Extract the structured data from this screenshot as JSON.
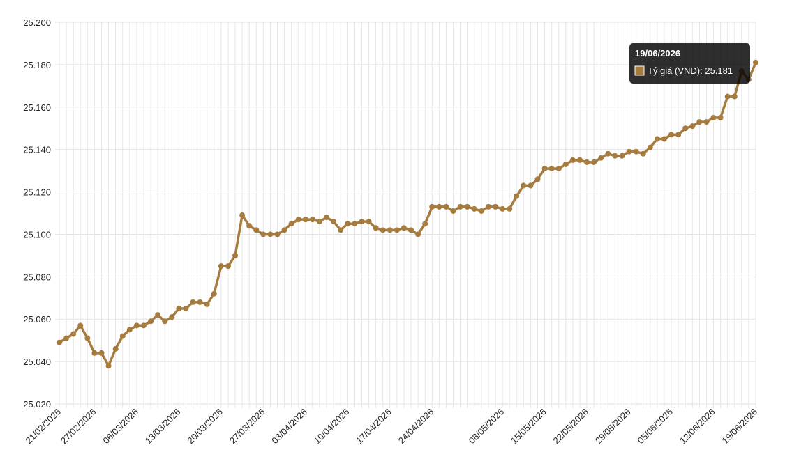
{
  "chart_data": {
    "type": "line",
    "categories": [
      "21/02/2026",
      null,
      null,
      null,
      null,
      "27/02/2026",
      null,
      null,
      null,
      null,
      null,
      "06/03/2026",
      null,
      null,
      null,
      null,
      null,
      "13/03/2026",
      null,
      null,
      null,
      null,
      null,
      "20/03/2026",
      null,
      null,
      null,
      null,
      null,
      "27/03/2026",
      null,
      null,
      null,
      null,
      null,
      "03/04/2026",
      null,
      null,
      null,
      null,
      null,
      "10/04/2026",
      null,
      null,
      null,
      null,
      null,
      "17/04/2026",
      null,
      null,
      null,
      null,
      null,
      "24/04/2026",
      null,
      null,
      null,
      null,
      null,
      null,
      null,
      null,
      null,
      "08/05/2026",
      null,
      null,
      null,
      null,
      null,
      "15/05/2026",
      null,
      null,
      null,
      null,
      null,
      "22/05/2026",
      null,
      null,
      null,
      null,
      null,
      "29/05/2026",
      null,
      null,
      null,
      null,
      null,
      "05/06/2026",
      null,
      null,
      null,
      null,
      null,
      "12/06/2026",
      null,
      null,
      null,
      null,
      null,
      "19/06/2026"
    ],
    "series": [
      {
        "color": "#a57b3e",
        "values": [
          25.049,
          25.051,
          25.053,
          25.057,
          25.051,
          25.044,
          25.044,
          25.038,
          25.046,
          25.052,
          25.055,
          25.057,
          25.057,
          25.059,
          25.062,
          25.059,
          25.061,
          25.065,
          25.065,
          25.068,
          25.068,
          25.067,
          25.072,
          25.085,
          25.085,
          25.09,
          25.109,
          25.104,
          25.102,
          25.1,
          25.1,
          25.1,
          25.102,
          25.105,
          25.107,
          25.107,
          25.107,
          25.106,
          25.108,
          25.106,
          25.102,
          25.105,
          25.105,
          25.106,
          25.106,
          25.103,
          25.102,
          25.102,
          25.102,
          25.103,
          25.102,
          25.1,
          25.105,
          25.113,
          25.113,
          25.113,
          25.111,
          25.113,
          25.113,
          25.112,
          25.111,
          25.113,
          25.113,
          25.112,
          25.112,
          25.118,
          25.123,
          25.123,
          25.126,
          25.131,
          25.131,
          25.131,
          25.133,
          25.135,
          25.135,
          25.134,
          25.134,
          25.136,
          25.138,
          25.137,
          25.137,
          25.139,
          25.139,
          25.138,
          25.141,
          25.145,
          25.145,
          25.147,
          25.147,
          25.15,
          25.151,
          25.153,
          25.153,
          25.155,
          25.155,
          25.165,
          25.165,
          25.177,
          25.173,
          25.181
        ]
      }
    ],
    "ylim": [
      25.02,
      25.2
    ],
    "yticks": [
      {
        "value": 25.02,
        "label": "25.020"
      },
      {
        "value": 25.04,
        "label": "25.040"
      },
      {
        "value": 25.06,
        "label": "25.060"
      },
      {
        "value": 25.08,
        "label": "25.080"
      },
      {
        "value": 25.1,
        "label": "25.100"
      },
      {
        "value": 25.12,
        "label": "25.120"
      },
      {
        "value": 25.14,
        "label": "25.140"
      },
      {
        "value": 25.16,
        "label": "25.160"
      },
      {
        "value": 25.18,
        "label": "25.180"
      },
      {
        "value": 25.2,
        "label": "25.200"
      }
    ],
    "grid": true,
    "tooltip": {
      "title": "19/06/2026",
      "label": "Tỷ giá (VND): 25.181"
    }
  }
}
